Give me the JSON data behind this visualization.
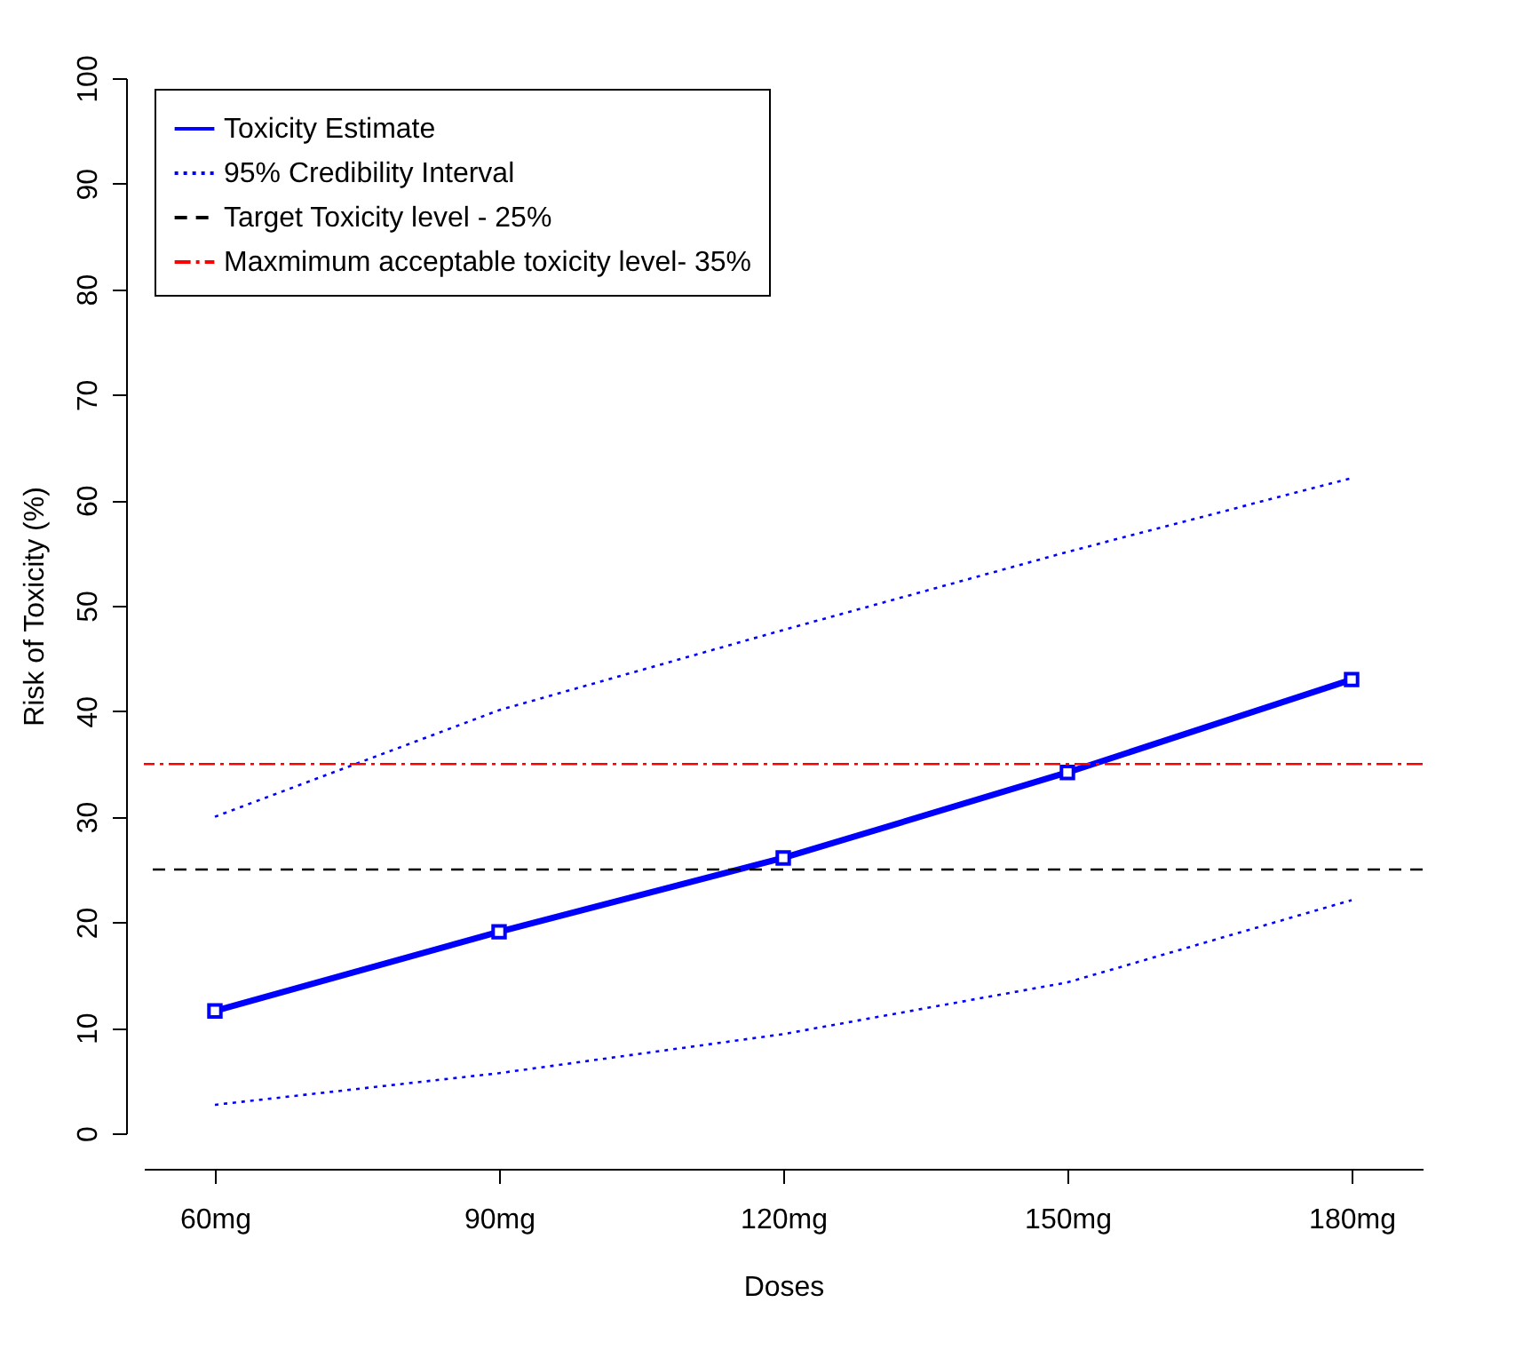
{
  "chart_data": {
    "type": "line",
    "xlabel": "Doses",
    "ylabel": "Risk of Toxicity (%)",
    "categories": [
      "60mg",
      "90mg",
      "120mg",
      "150mg",
      "180mg"
    ],
    "series": [
      {
        "name": "Toxicity Estimate",
        "color": "#0000ff",
        "marker": "square",
        "line_style": "solid",
        "values": [
          11.6,
          19.1,
          26.1,
          34.2,
          43.0
        ]
      },
      {
        "name": "95% Credibility Interval",
        "color": "#0000ff",
        "marker": "none",
        "line_style": "dotted",
        "values": [
          30.0,
          40.1,
          47.7,
          55.1,
          62.1
        ]
      },
      {
        "color": "#0000ff",
        "marker": "none",
        "line_style": "dotted",
        "values": [
          2.7,
          5.7,
          9.4,
          14.3,
          22.1
        ]
      }
    ],
    "ref_lines": [
      {
        "axis": "y",
        "value": 25,
        "label": "Target Toxicity level - 25%",
        "color": "#000000",
        "line_style": "dashed"
      },
      {
        "axis": "y",
        "value": 35,
        "label": "Maxmimum acceptable toxicity level- 35%",
        "color": "#ff0000",
        "line_style": "dashdot"
      }
    ],
    "ylim": [
      0,
      100
    ],
    "yticks": [
      0,
      10,
      20,
      30,
      40,
      50,
      60,
      70,
      80,
      90,
      100
    ],
    "grid": false,
    "legend": "top left"
  }
}
